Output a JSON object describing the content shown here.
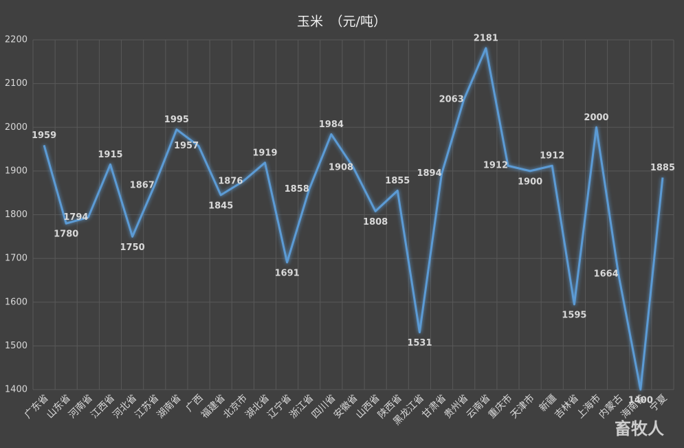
{
  "chart_data": {
    "type": "line",
    "title": "玉米　（元/吨）",
    "categories": [
      "广东省",
      "山东省",
      "河南省",
      "江西省",
      "河北省",
      "江苏省",
      "湖南省",
      "广西",
      "福建省",
      "北京市",
      "湖北省",
      "辽宁省",
      "浙江省",
      "四川省",
      "安徽省",
      "山西省",
      "陕西省",
      "黑龙江省",
      "甘肃省",
      "贵州省",
      "云南省",
      "重庆市",
      "天津市",
      "新疆",
      "吉林省",
      "上海市",
      "内蒙古",
      "海南省",
      "宁夏"
    ],
    "series": [
      {
        "name": "玉米",
        "color": "#5b9bd5",
        "values": [
          1959,
          1780,
          1794,
          1915,
          1750,
          1867,
          1995,
          1957,
          1845,
          1876,
          1919,
          1691,
          1858,
          1984,
          1908,
          1808,
          1855,
          1531,
          1894,
          2063,
          2181,
          1912,
          1900,
          1912,
          1595,
          2000,
          1664,
          1400,
          1885
        ]
      }
    ],
    "ylim": [
      1400,
      2200
    ],
    "yticks": [
      1400,
      1500,
      1600,
      1700,
      1800,
      1900,
      2000,
      2100,
      2200
    ],
    "grid": true,
    "watermark": "畜牧人"
  }
}
